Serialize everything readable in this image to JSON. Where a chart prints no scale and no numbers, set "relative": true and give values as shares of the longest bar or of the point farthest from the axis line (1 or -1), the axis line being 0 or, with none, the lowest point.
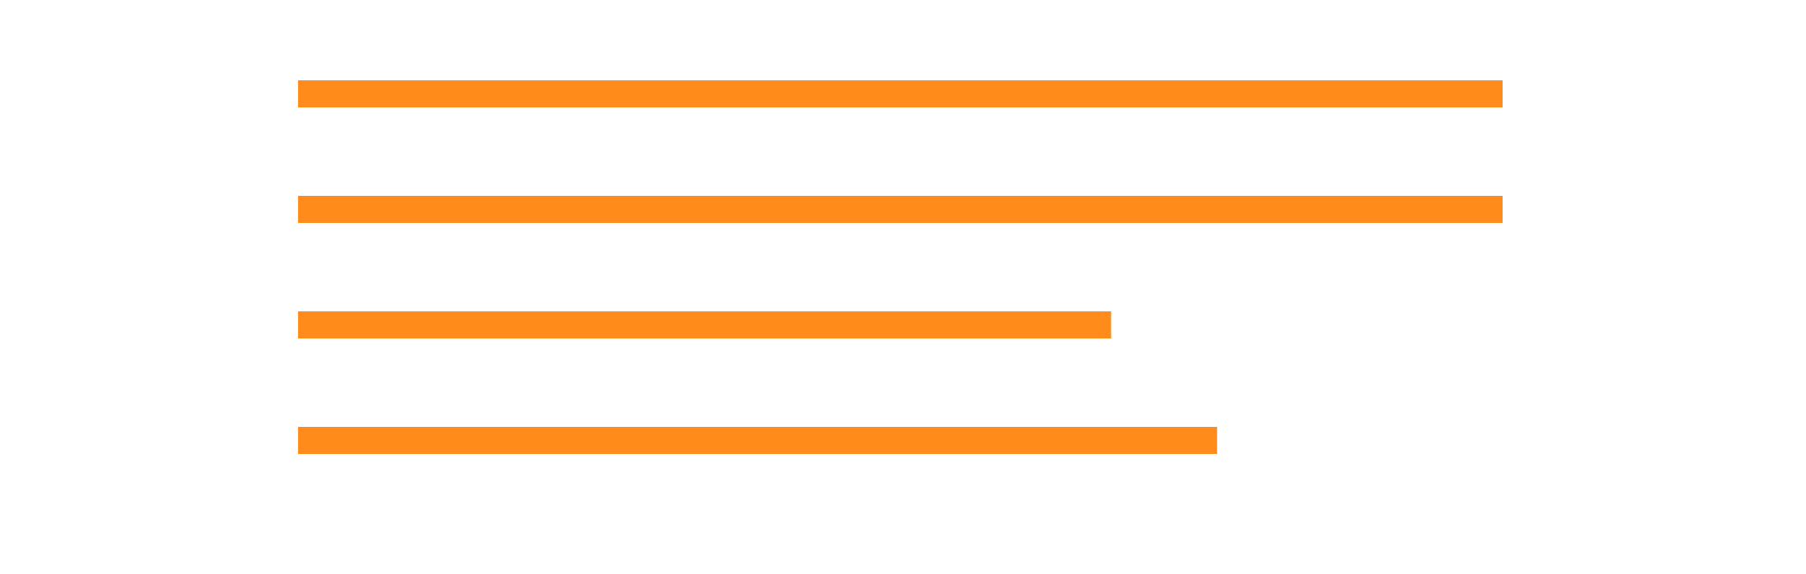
{
  "chart_data": {
    "type": "bar",
    "orientation": "horizontal",
    "relative": true,
    "categories": [
      null,
      null,
      null,
      null
    ],
    "values": [
      1,
      1,
      0.675,
      0.763
    ],
    "color": "#ff8c1a"
  }
}
